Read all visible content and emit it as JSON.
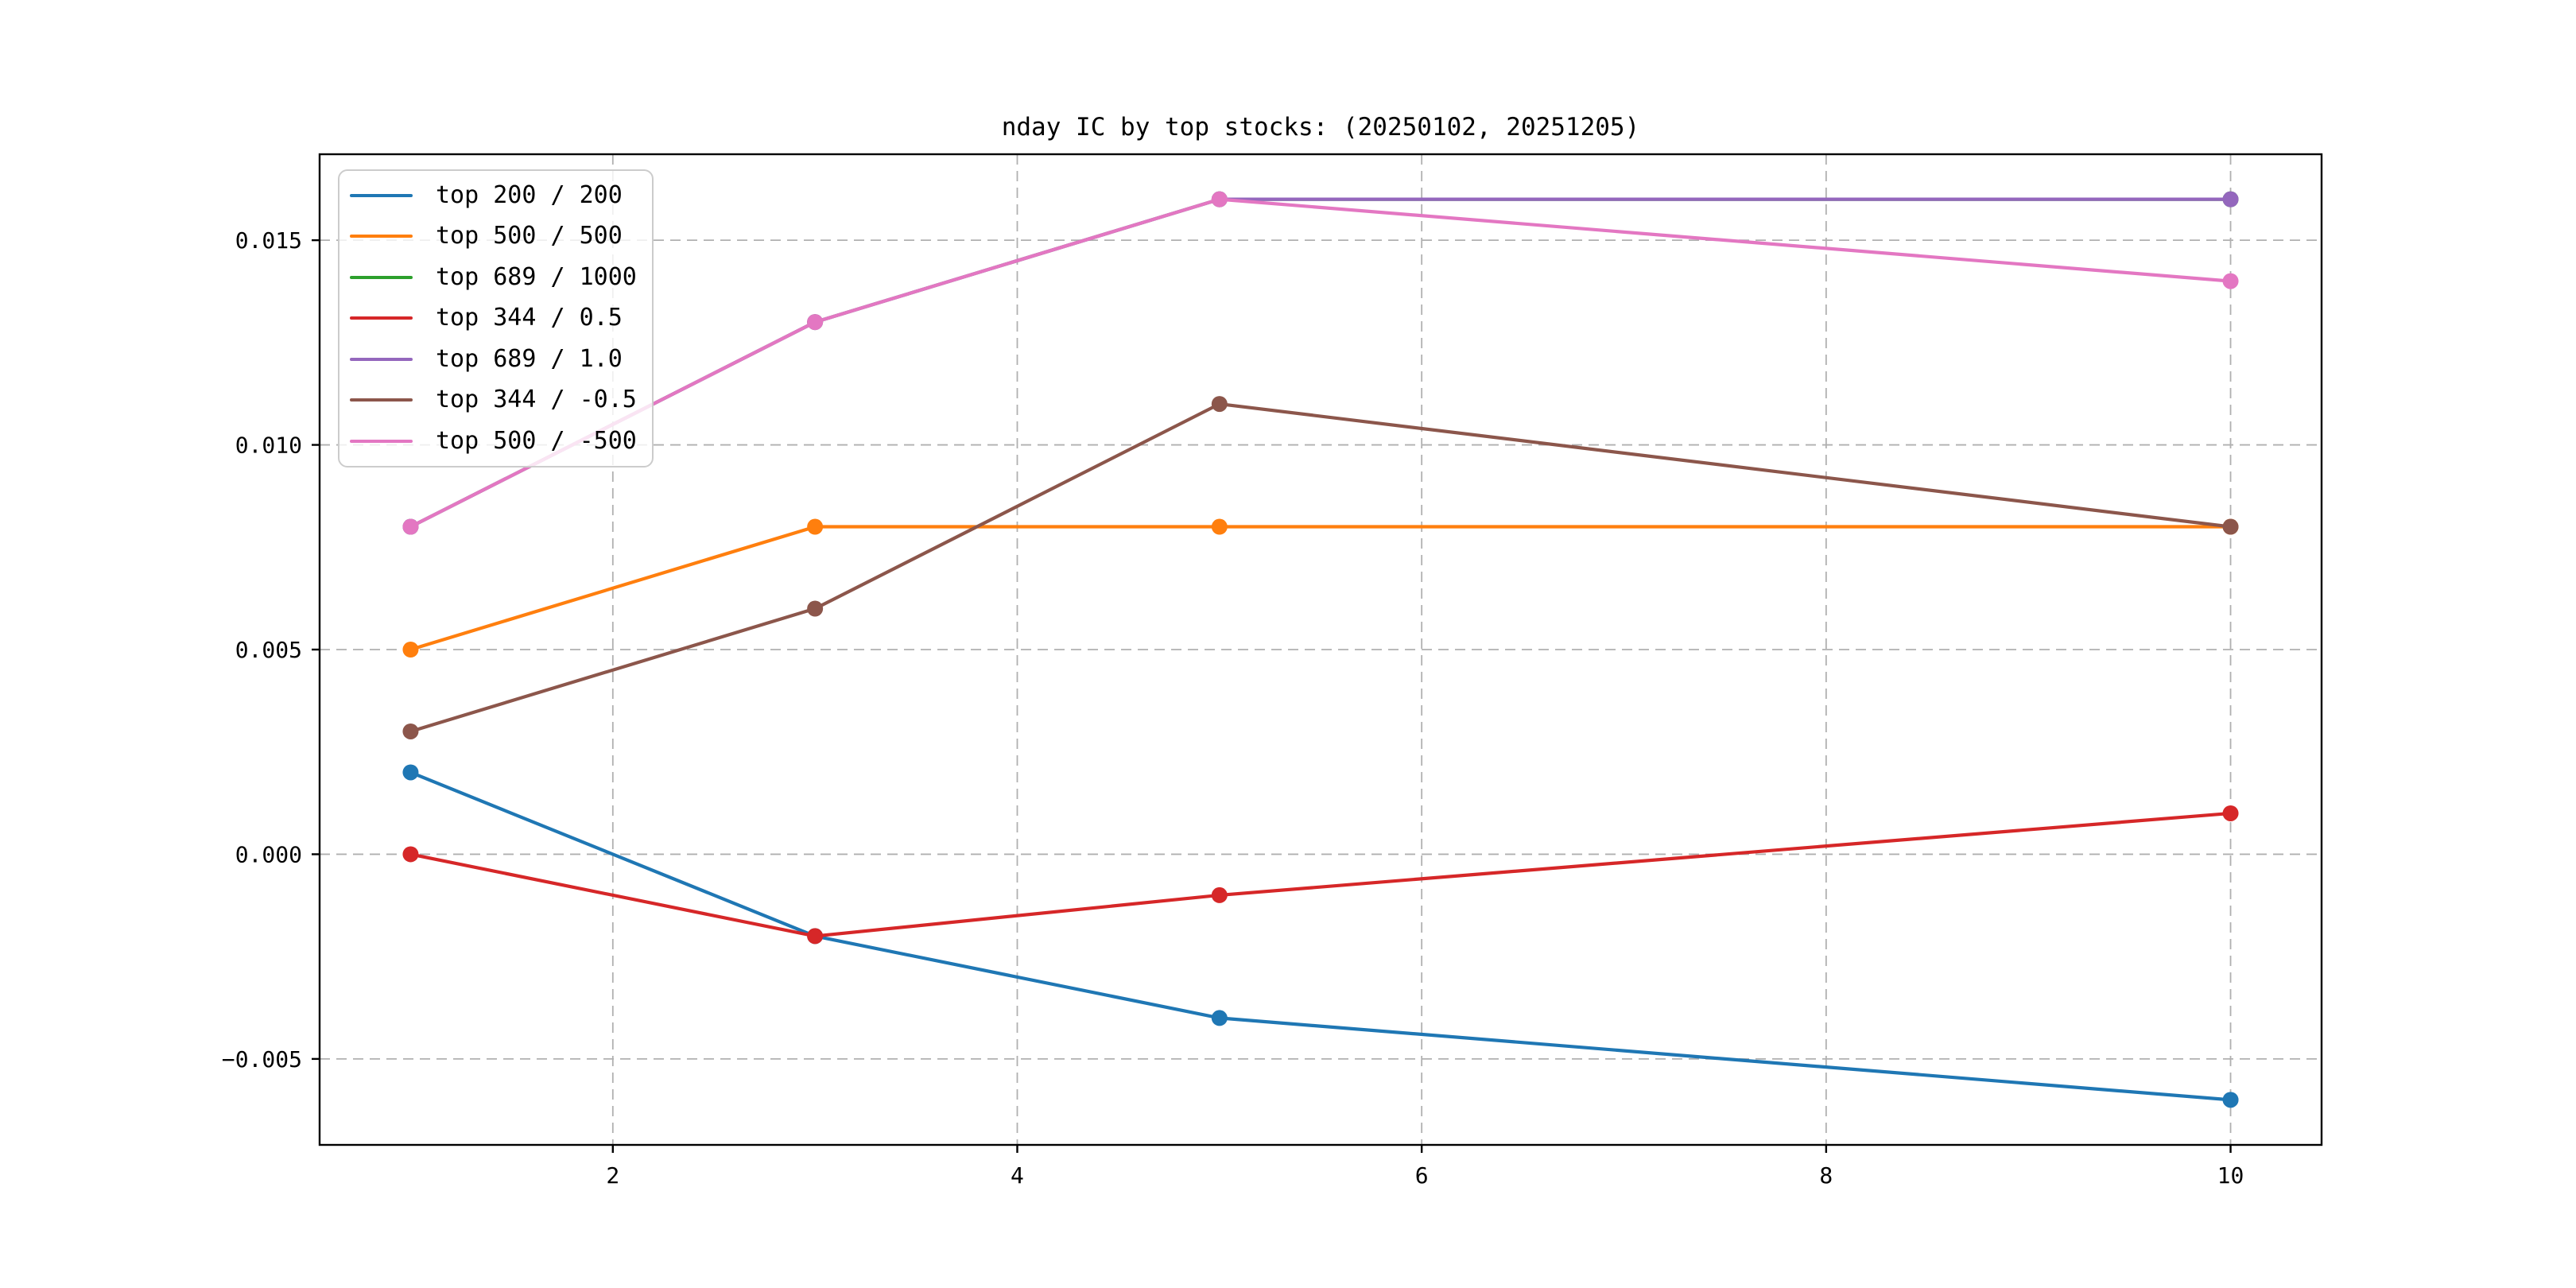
{
  "chart_data": {
    "type": "line",
    "title": "nday IC by top stocks: (20250102, 20251205)",
    "xlabel": "",
    "ylabel": "",
    "x": [
      1,
      3,
      5,
      10
    ],
    "series": [
      {
        "name": "top 200 / 200",
        "color": "#1f77b4",
        "values": [
          0.002,
          -0.002,
          -0.004,
          -0.006
        ]
      },
      {
        "name": "top 500 / 500",
        "color": "#ff7f0e",
        "values": [
          0.005,
          0.008,
          0.008,
          0.008
        ]
      },
      {
        "name": "top 689 / 1000",
        "color": "#2ca02c",
        "values": [
          0.008,
          0.013,
          0.016,
          0.016
        ]
      },
      {
        "name": "top 344 / 0.5",
        "color": "#d62728",
        "values": [
          0.0,
          -0.002,
          -0.001,
          0.001
        ]
      },
      {
        "name": "top 689 / 1.0",
        "color": "#9467bd",
        "values": [
          0.008,
          0.013,
          0.016,
          0.016
        ]
      },
      {
        "name": "top 344 / -0.5",
        "color": "#8c564b",
        "values": [
          0.003,
          0.006,
          0.011,
          0.008
        ]
      },
      {
        "name": "top 500 / -500",
        "color": "#e377c2",
        "values": [
          0.008,
          0.013,
          0.016,
          0.014
        ]
      }
    ],
    "xticks": {
      "values": [
        2,
        4,
        6,
        8,
        10
      ],
      "labels": [
        "2",
        "4",
        "6",
        "8",
        "10"
      ]
    },
    "yticks": {
      "values": [
        -0.005,
        0.0,
        0.005,
        0.01,
        0.015
      ],
      "labels": [
        "−0.005",
        "0.000",
        "0.005",
        "0.010",
        "0.015"
      ]
    },
    "xlim": [
      0.55,
      10.45
    ],
    "ylim": [
      -0.0071,
      0.0171
    ],
    "grid": "dashed both axes",
    "legend_position": "upper left",
    "marker": "circle",
    "colors": {
      "background": "#ffffff",
      "grid": "#b0b0b0",
      "spine": "#000000",
      "text": "#000000"
    }
  }
}
